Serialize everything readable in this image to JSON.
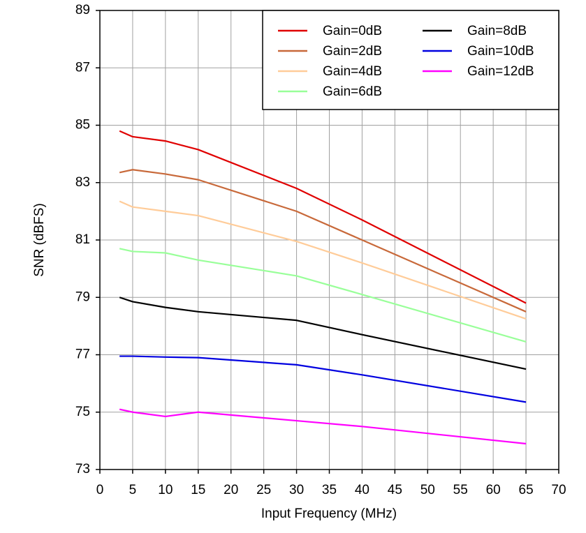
{
  "chart_data": {
    "type": "line",
    "x_label": "Input Frequency (MHz)",
    "y_label": "SNR (dBFS)",
    "x": [
      3,
      5,
      10,
      15,
      30,
      40,
      65
    ],
    "series": [
      {
        "name": "Gain=0dB",
        "color": "#e00000",
        "values": [
          84.8,
          84.6,
          84.45,
          84.15,
          82.8,
          81.7,
          78.8
        ]
      },
      {
        "name": "Gain=2dB",
        "color": "#c8693a",
        "values": [
          83.35,
          83.45,
          83.3,
          83.1,
          82.0,
          81.0,
          78.5
        ]
      },
      {
        "name": "Gain=4dB",
        "color": "#ffcc99",
        "values": [
          82.35,
          82.15,
          82.0,
          81.85,
          80.95,
          80.2,
          78.25
        ]
      },
      {
        "name": "Gain=6dB",
        "color": "#99ff99",
        "values": [
          80.7,
          80.6,
          80.55,
          80.3,
          79.75,
          79.1,
          77.45
        ]
      },
      {
        "name": "Gain=8dB",
        "color": "#000000",
        "values": [
          79.0,
          78.85,
          78.65,
          78.5,
          78.2,
          77.7,
          76.5
        ]
      },
      {
        "name": "Gain=10dB",
        "color": "#0000e0",
        "values": [
          76.95,
          76.95,
          76.92,
          76.9,
          76.65,
          76.3,
          75.35
        ]
      },
      {
        "name": "Gain=12dB",
        "color": "#ff00ff",
        "values": [
          75.1,
          75.0,
          74.85,
          75.0,
          74.7,
          74.5,
          73.9
        ]
      }
    ],
    "xlim": [
      0,
      70
    ],
    "xticks": [
      0,
      5,
      10,
      15,
      20,
      25,
      30,
      35,
      40,
      45,
      50,
      55,
      60,
      65,
      70
    ],
    "ylim": [
      73,
      89
    ],
    "yticks": [
      73,
      75,
      77,
      79,
      81,
      83,
      85,
      87,
      89
    ],
    "grid": true,
    "legend": "upper right"
  }
}
